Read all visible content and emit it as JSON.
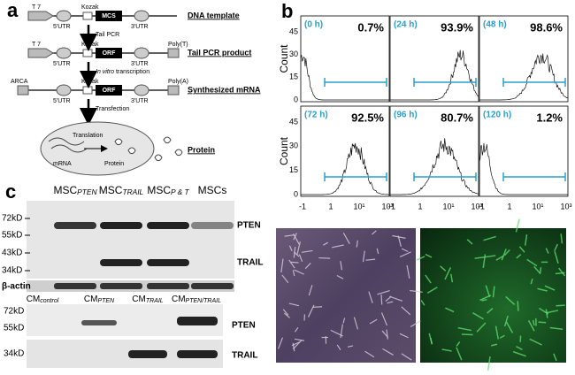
{
  "panel_a": {
    "label": "a",
    "t7": "T 7",
    "kozak": "Kozak",
    "utr5": "5'UTR",
    "utr3": "3'UTR",
    "mcs": "MCS",
    "orf": "ORF",
    "arca": "ARCA",
    "poly_t": "Poly(T)",
    "poly_a": "Poly(A)",
    "step_tail_pcr": "Tail PCR",
    "step_transcription": {
      "italic": "In vitro",
      "rest": " transcription"
    },
    "step_transfection": "Transfection",
    "translation": "Translation",
    "mrna": "mRNA",
    "protein_cell": "Protein",
    "stage_labels": [
      "DNA template",
      "Tail PCR product",
      "Synthesized mRNA",
      "Protein"
    ]
  },
  "panel_b": {
    "label": "b",
    "y_axis_label": "Count",
    "y_tick_labels": [
      "0",
      "15",
      "30",
      "45"
    ],
    "x_tick_labels": [
      "-1",
      "1",
      "10¹",
      "10³"
    ],
    "plots": [
      {
        "time": "(0 h)",
        "percent": "0.7%"
      },
      {
        "time": "(24 h)",
        "percent": "93.9%"
      },
      {
        "time": "(48 h)",
        "percent": "98.6%"
      },
      {
        "time": "(72 h)",
        "percent": "92.5%"
      },
      {
        "time": "(96 h)",
        "percent": "80.7%"
      },
      {
        "time": "(120 h)",
        "percent": "1.2%"
      }
    ]
  },
  "panel_c": {
    "label": "c",
    "upper_blot": {
      "lanes": [
        {
          "main": "MSC",
          "sub": "PTEN"
        },
        {
          "main": "MSC",
          "sub": "TRAIL"
        },
        {
          "main": "MSC",
          "sub": "P & T"
        },
        {
          "main": "MSCs",
          "sub": ""
        }
      ],
      "markers": [
        "72kD",
        "55kD",
        "43kD",
        "34kD"
      ],
      "bands": [
        "PTEN",
        "TRAIL"
      ],
      "loading_control": "β-actin"
    },
    "lower_blot": {
      "lanes": [
        {
          "main": "CM",
          "sub": "control"
        },
        {
          "main": "CM",
          "sub": "PTEN"
        },
        {
          "main": "CM",
          "sub": "TRAIL"
        },
        {
          "main": "CM",
          "sub": "PTEN/TRAIL"
        }
      ],
      "markers": [
        "72kD",
        "55kD",
        "34kD"
      ],
      "bands": [
        "PTEN",
        "TRAIL"
      ]
    }
  }
}
